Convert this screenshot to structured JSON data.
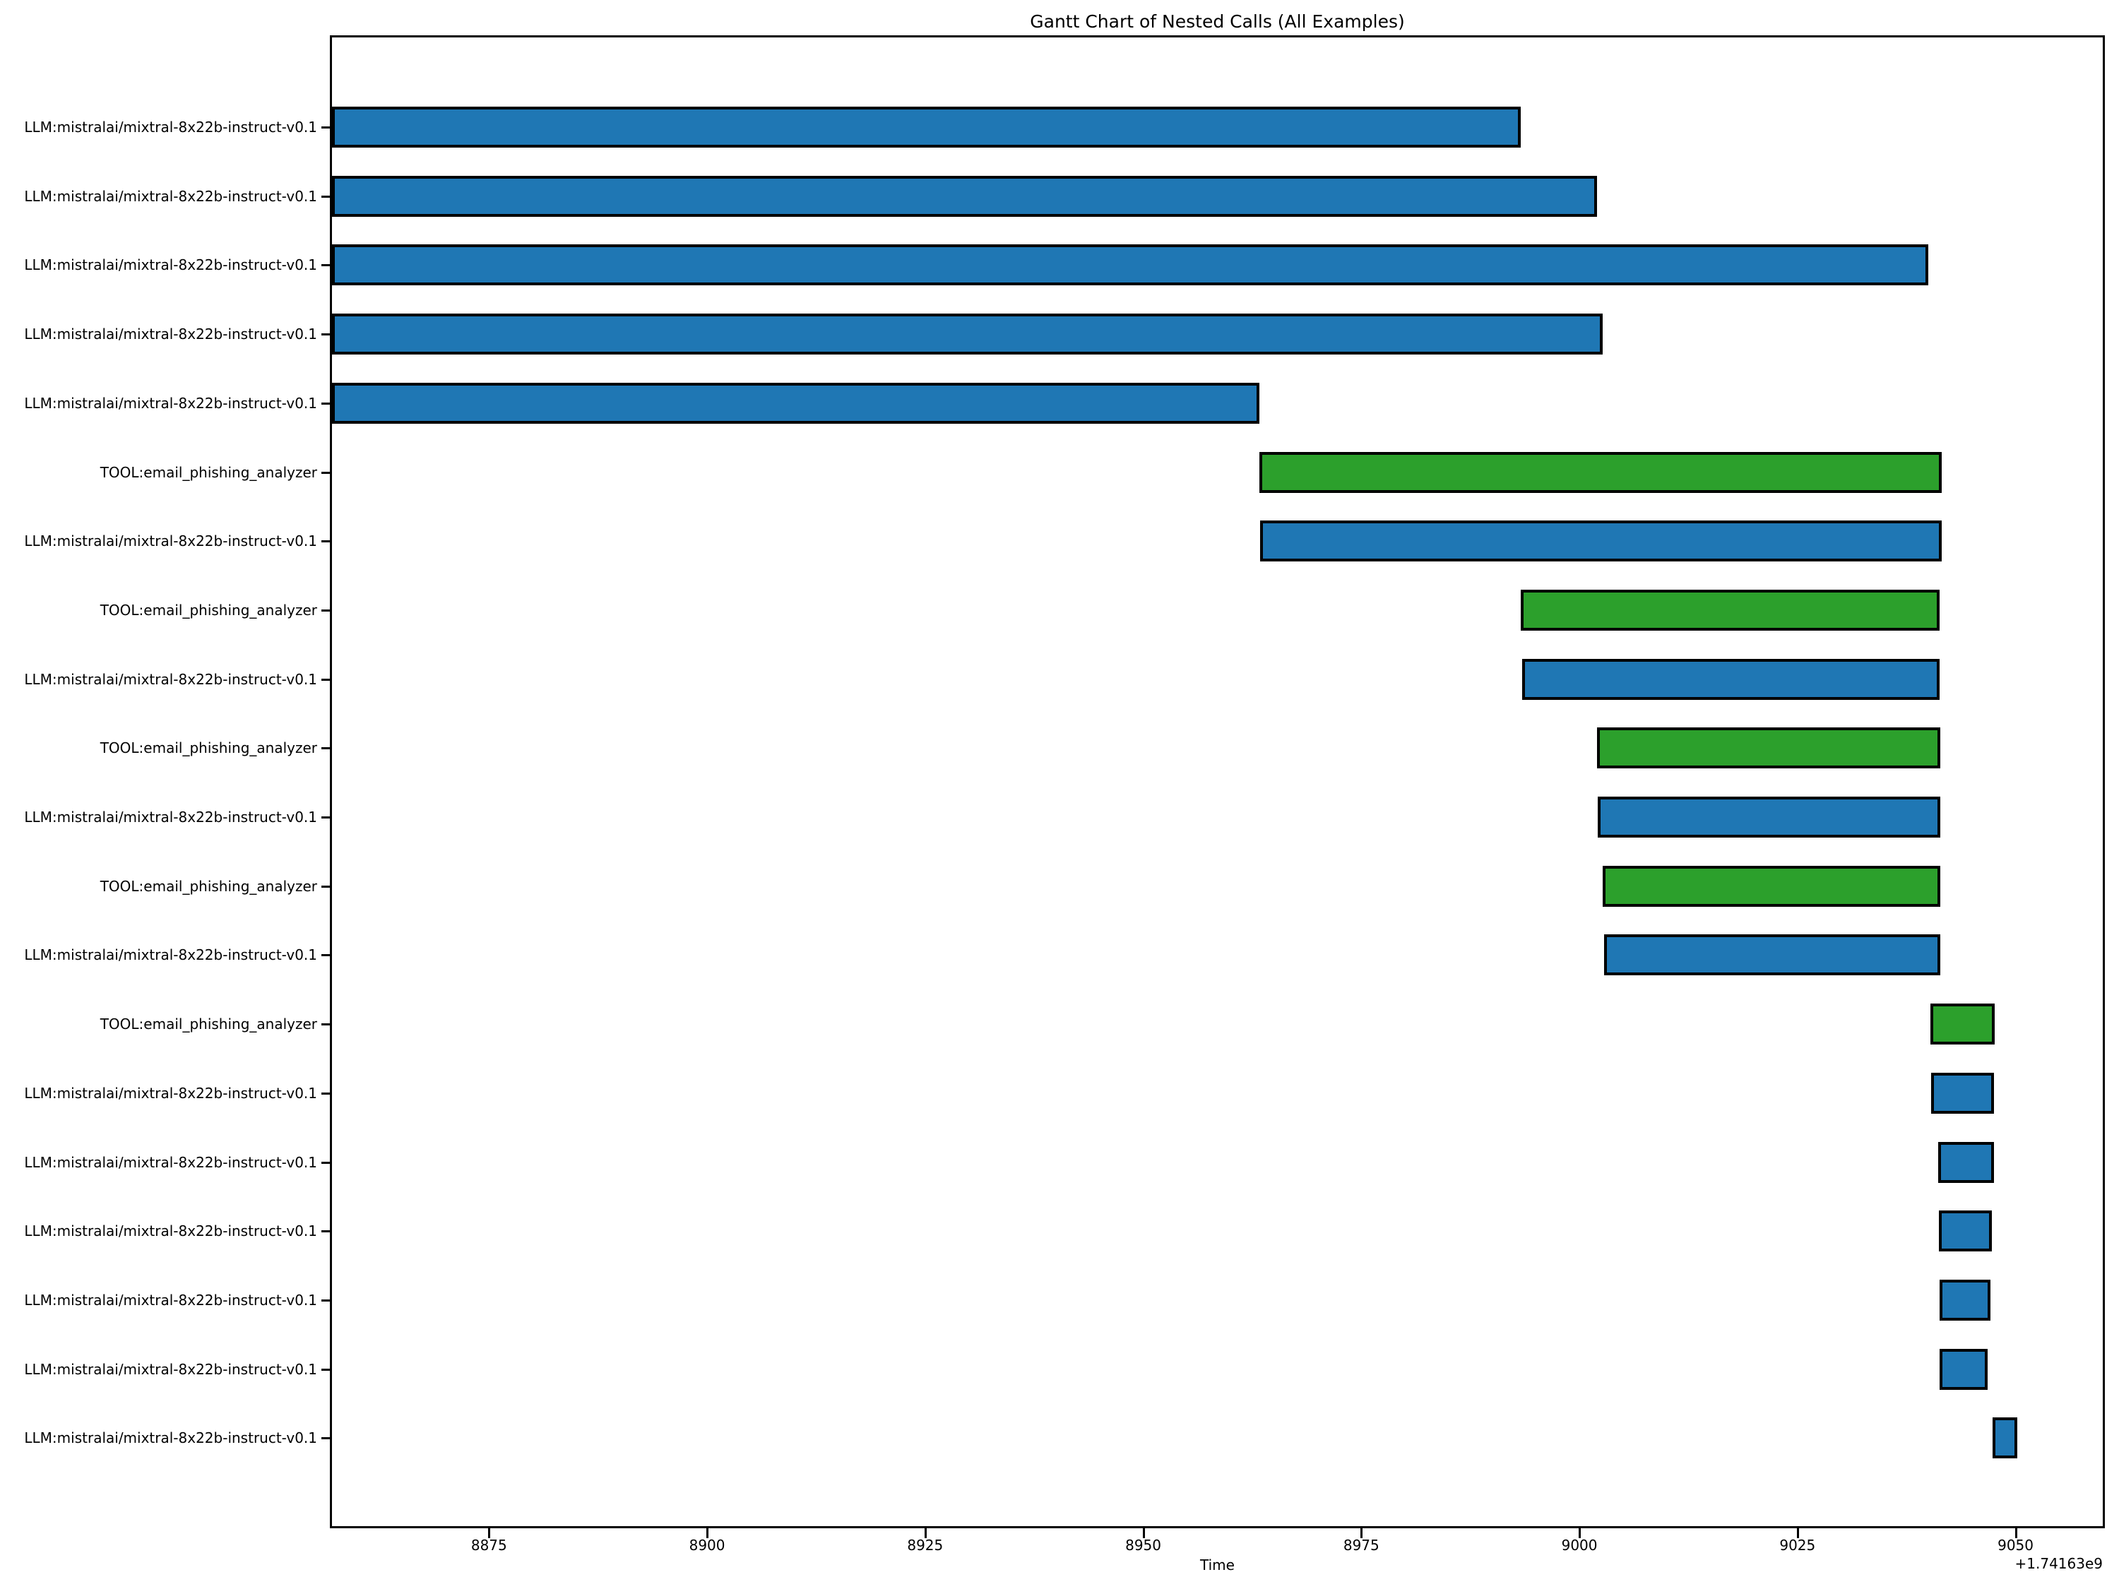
{
  "title": "Gantt Chart of Nested Calls (All Examples)",
  "xlabel": "Time",
  "axis_offset_label": "+1.74163e9",
  "colors": {
    "llm_bar": "#1f77b4",
    "tool_bar": "#2ca02c",
    "bar_edge": "#000000",
    "background": "#ffffff",
    "text": "#000000"
  },
  "chart_data": {
    "type": "bar",
    "subtype": "gantt-horizontal",
    "title": "Gantt Chart of Nested Calls (All Examples)",
    "xlabel": "Time",
    "ylabel": "",
    "x_offset": "+1.74163e9",
    "xlim": [
      8857,
      9060
    ],
    "xticks": [
      8875,
      8900,
      8925,
      8950,
      8975,
      9000,
      9025,
      9050
    ],
    "grid": false,
    "legend": "none",
    "rows": [
      {
        "label": "LLM:mistralai/mixtral-8x22b-instruct-v0.1",
        "kind": "LLM",
        "start": 8857.0,
        "end": 8993.3
      },
      {
        "label": "LLM:mistralai/mixtral-8x22b-instruct-v0.1",
        "kind": "LLM",
        "start": 8857.0,
        "end": 9002.0
      },
      {
        "label": "LLM:mistralai/mixtral-8x22b-instruct-v0.1",
        "kind": "LLM",
        "start": 8857.0,
        "end": 9040.0
      },
      {
        "label": "LLM:mistralai/mixtral-8x22b-instruct-v0.1",
        "kind": "LLM",
        "start": 8857.0,
        "end": 9002.7
      },
      {
        "label": "LLM:mistralai/mixtral-8x22b-instruct-v0.1",
        "kind": "LLM",
        "start": 8857.0,
        "end": 8963.3
      },
      {
        "label": "TOOL:email_phishing_analyzer",
        "kind": "TOOL",
        "start": 8963.3,
        "end": 9041.5
      },
      {
        "label": "LLM:mistralai/mixtral-8x22b-instruct-v0.1",
        "kind": "LLM",
        "start": 8963.4,
        "end": 9041.5
      },
      {
        "label": "TOOL:email_phishing_analyzer",
        "kind": "TOOL",
        "start": 8993.3,
        "end": 9041.3
      },
      {
        "label": "LLM:mistralai/mixtral-8x22b-instruct-v0.1",
        "kind": "LLM",
        "start": 8993.4,
        "end": 9041.3
      },
      {
        "label": "TOOL:email_phishing_analyzer",
        "kind": "TOOL",
        "start": 9002.0,
        "end": 9041.4
      },
      {
        "label": "LLM:mistralai/mixtral-8x22b-instruct-v0.1",
        "kind": "LLM",
        "start": 9002.1,
        "end": 9041.4
      },
      {
        "label": "TOOL:email_phishing_analyzer",
        "kind": "TOOL",
        "start": 9002.7,
        "end": 9041.4
      },
      {
        "label": "LLM:mistralai/mixtral-8x22b-instruct-v0.1",
        "kind": "LLM",
        "start": 9002.8,
        "end": 9041.4
      },
      {
        "label": "TOOL:email_phishing_analyzer",
        "kind": "TOOL",
        "start": 9040.2,
        "end": 9047.6
      },
      {
        "label": "LLM:mistralai/mixtral-8x22b-instruct-v0.1",
        "kind": "LLM",
        "start": 9040.3,
        "end": 9047.5
      },
      {
        "label": "LLM:mistralai/mixtral-8x22b-instruct-v0.1",
        "kind": "LLM",
        "start": 9041.1,
        "end": 9047.5
      },
      {
        "label": "LLM:mistralai/mixtral-8x22b-instruct-v0.1",
        "kind": "LLM",
        "start": 9041.2,
        "end": 9047.3
      },
      {
        "label": "LLM:mistralai/mixtral-8x22b-instruct-v0.1",
        "kind": "LLM",
        "start": 9041.3,
        "end": 9047.1
      },
      {
        "label": "LLM:mistralai/mixtral-8x22b-instruct-v0.1",
        "kind": "LLM",
        "start": 9041.3,
        "end": 9046.8
      },
      {
        "label": "LLM:mistralai/mixtral-8x22b-instruct-v0.1",
        "kind": "LLM",
        "start": 9047.4,
        "end": 9050.2
      }
    ]
  }
}
